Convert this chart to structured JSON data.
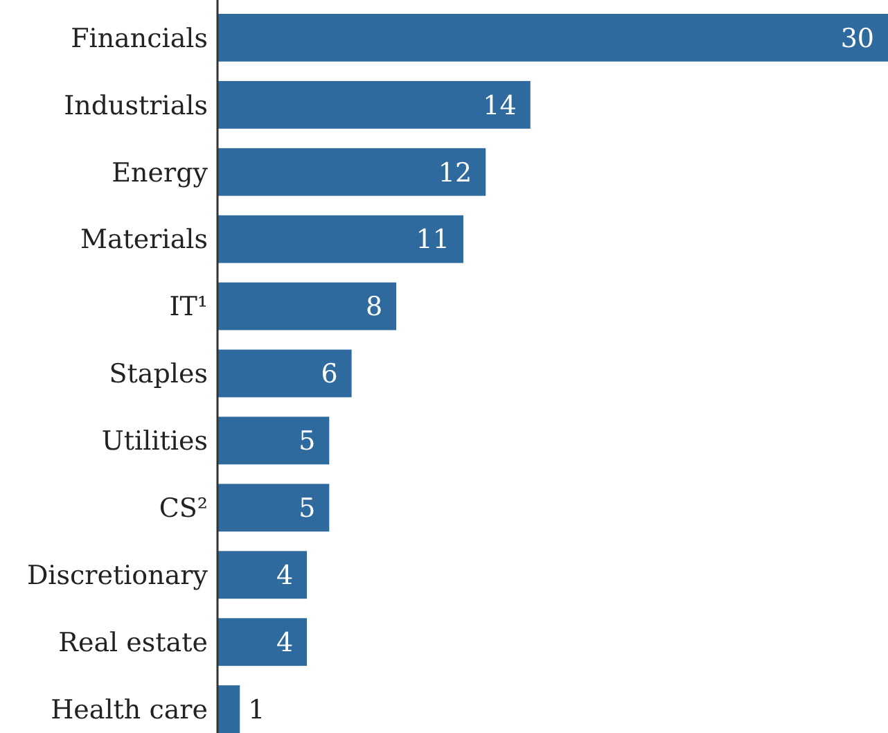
{
  "chart_data": {
    "type": "bar",
    "orientation": "horizontal",
    "categories": [
      "Financials",
      "Industrials",
      "Energy",
      "Materials",
      "IT¹",
      "Staples",
      "Utilities",
      "CS²",
      "Discretionary",
      "Real estate",
      "Health care"
    ],
    "values": [
      30,
      14,
      12,
      11,
      8,
      6,
      5,
      5,
      4,
      4,
      1
    ],
    "color": "#2e6a9e",
    "xlim": [
      0,
      30
    ],
    "data_labels": true
  }
}
